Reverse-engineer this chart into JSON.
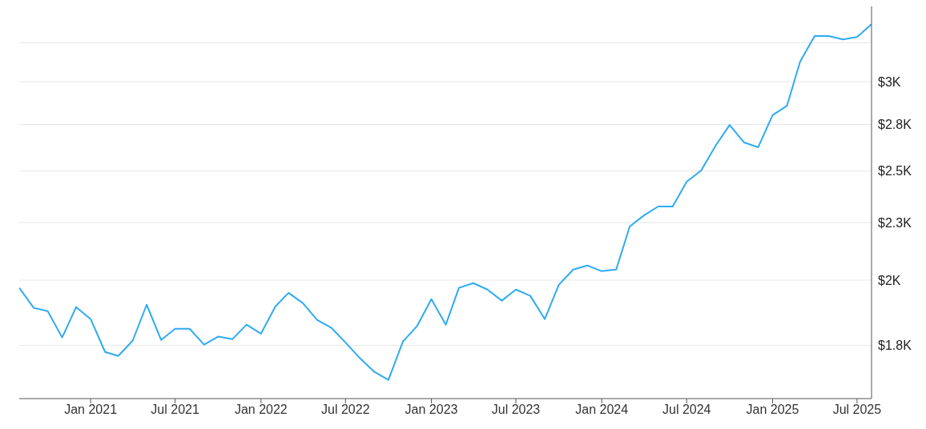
{
  "chart_data": {
    "type": "line",
    "x": [
      "2020-08",
      "2020-09",
      "2020-10",
      "2020-11",
      "2020-12",
      "2021-01",
      "2021-02",
      "2021-03",
      "2021-04",
      "2021-05",
      "2021-06",
      "2021-07",
      "2021-08",
      "2021-09",
      "2021-10",
      "2021-11",
      "2021-12",
      "2022-01",
      "2022-02",
      "2022-03",
      "2022-04",
      "2022-05",
      "2022-06",
      "2022-07",
      "2022-08",
      "2022-09",
      "2022-10",
      "2022-11",
      "2022-12",
      "2023-01",
      "2023-02",
      "2023-03",
      "2023-04",
      "2023-05",
      "2023-06",
      "2023-07",
      "2023-08",
      "2023-09",
      "2023-10",
      "2023-11",
      "2023-12",
      "2024-01",
      "2024-02",
      "2024-03",
      "2024-04",
      "2024-05",
      "2024-06",
      "2024-07",
      "2024-08",
      "2024-09",
      "2024-10",
      "2024-11",
      "2024-12",
      "2025-01",
      "2025-02",
      "2025-03",
      "2025-04",
      "2025-05",
      "2025-06",
      "2025-07",
      "2025-08"
    ],
    "series": [
      {
        "color": "#2eaaf5",
        "values": [
          1969,
          1890,
          1877,
          1779,
          1893,
          1847,
          1727,
          1713,
          1767,
          1902,
          1770,
          1811,
          1811,
          1753,
          1782,
          1773,
          1826,
          1793,
          1896,
          1949,
          1908,
          1844,
          1814,
          1761,
          1705,
          1658,
          1631,
          1764,
          1820,
          1924,
          1826,
          1969,
          1988,
          1962,
          1918,
          1962,
          1937,
          1847,
          1981,
          2044,
          2061,
          2037,
          2044,
          2232,
          2284,
          2325,
          2325,
          2446,
          2503,
          2633,
          2747,
          2650,
          2624,
          2802,
          2857,
          3126,
          3294,
          3294,
          3272,
          3288,
          3375
        ]
      }
    ],
    "xlim": [
      "2020-08",
      "2025-08"
    ],
    "xticks": [
      {
        "value": "2021-01",
        "label": "Jan 2021"
      },
      {
        "value": "2021-07",
        "label": "Jul 2021"
      },
      {
        "value": "2022-01",
        "label": "Jan 2022"
      },
      {
        "value": "2022-07",
        "label": "Jul 2022"
      },
      {
        "value": "2023-01",
        "label": "Jan 2023"
      },
      {
        "value": "2023-07",
        "label": "Jul 2023"
      },
      {
        "value": "2024-01",
        "label": "Jan 2024"
      },
      {
        "value": "2024-07",
        "label": "Jul 2024"
      },
      {
        "value": "2025-01",
        "label": "Jan 2025"
      },
      {
        "value": "2025-07",
        "label": "Jul 2025"
      }
    ],
    "ylim": [
      1570,
      3500
    ],
    "yticks": [
      {
        "value": 1750,
        "label": "$1.8K"
      },
      {
        "value": 2000,
        "label": "$2K"
      },
      {
        "value": 2250,
        "label": "$2.3K"
      },
      {
        "value": 2500,
        "label": "$2.5K"
      },
      {
        "value": 2750,
        "label": "$2.8K"
      },
      {
        "value": 3000,
        "label": "$3K"
      },
      {
        "value": 3250,
        "label": null
      }
    ],
    "log": "y",
    "grid": "y",
    "marker": "none",
    "line_style": "solid",
    "legend": false
  }
}
